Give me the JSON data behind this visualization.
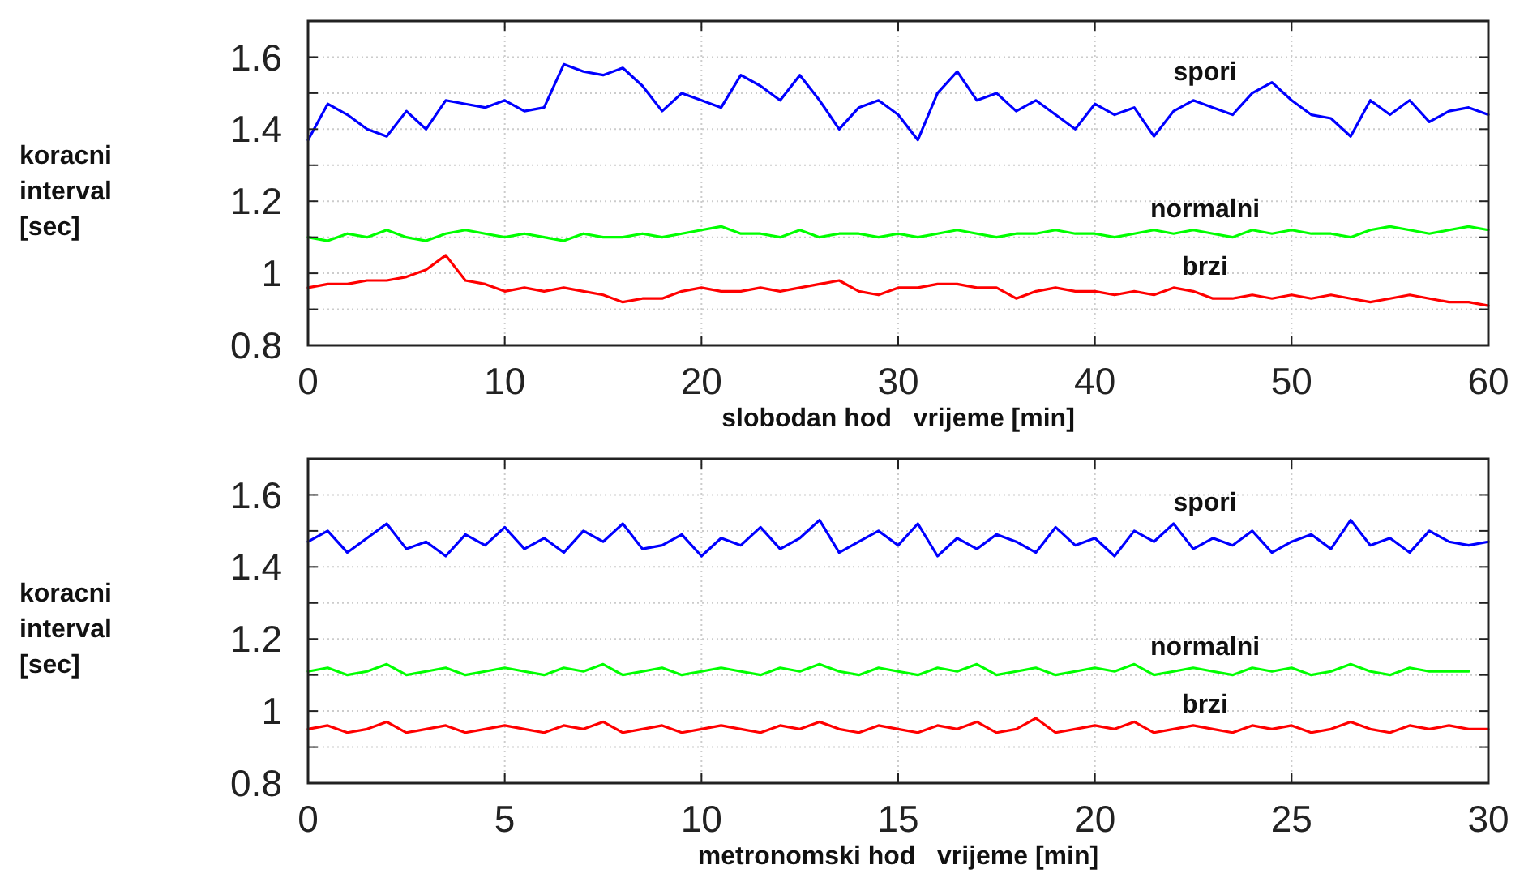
{
  "chart_data": [
    {
      "type": "line",
      "xlabel": "slobodan hod   vrijeme [min]",
      "ylabel": "koracni interval [sec]",
      "xlim": [
        0,
        60
      ],
      "xticks": [
        0,
        10,
        20,
        30,
        40,
        50,
        60
      ],
      "ylim": [
        0.8,
        1.7
      ],
      "yticks": [
        0.8,
        {
          "value": 0.9,
          "label": null
        },
        1,
        {
          "value": 1.1,
          "label": null
        },
        1.2,
        {
          "value": 1.3,
          "label": null
        },
        1.4,
        {
          "value": 1.5,
          "label": null
        },
        1.6
      ],
      "grid": true,
      "x": [
        0,
        1,
        2,
        3,
        4,
        5,
        6,
        7,
        8,
        9,
        10,
        11,
        12,
        13,
        14,
        15,
        16,
        17,
        18,
        19,
        20,
        21,
        22,
        23,
        24,
        25,
        26,
        27,
        28,
        29,
        30,
        31,
        32,
        33,
        34,
        35,
        36,
        37,
        38,
        39,
        40,
        41,
        42,
        43,
        44,
        45,
        46,
        47,
        48,
        49,
        50,
        51,
        52,
        53,
        54,
        55,
        56,
        57,
        58,
        59,
        60
      ],
      "series": [
        {
          "name": "spori",
          "color": "#0000ff",
          "values": [
            1.37,
            1.47,
            1.44,
            1.4,
            1.38,
            1.45,
            1.4,
            1.48,
            1.47,
            1.46,
            1.48,
            1.45,
            1.46,
            1.58,
            1.56,
            1.55,
            1.57,
            1.52,
            1.45,
            1.5,
            1.48,
            1.46,
            1.55,
            1.52,
            1.48,
            1.55,
            1.48,
            1.4,
            1.46,
            1.48,
            1.44,
            1.37,
            1.5,
            1.56,
            1.48,
            1.5,
            1.45,
            1.48,
            1.44,
            1.4,
            1.47,
            1.44,
            1.46,
            1.38,
            1.45,
            1.48,
            1.46,
            1.44,
            1.5,
            1.53,
            1.48,
            1.44,
            1.43,
            1.38,
            1.48,
            1.44,
            1.48,
            1.42,
            1.45,
            1.46,
            1.44
          ]
        },
        {
          "name": "normalni",
          "color": "#00ff00",
          "values": [
            1.1,
            1.09,
            1.11,
            1.1,
            1.12,
            1.1,
            1.09,
            1.11,
            1.12,
            1.11,
            1.1,
            1.11,
            1.1,
            1.09,
            1.11,
            1.1,
            1.1,
            1.11,
            1.1,
            1.11,
            1.12,
            1.13,
            1.11,
            1.11,
            1.1,
            1.12,
            1.1,
            1.11,
            1.11,
            1.1,
            1.11,
            1.1,
            1.11,
            1.12,
            1.11,
            1.1,
            1.11,
            1.11,
            1.12,
            1.11,
            1.11,
            1.1,
            1.11,
            1.12,
            1.11,
            1.12,
            1.11,
            1.1,
            1.12,
            1.11,
            1.12,
            1.11,
            1.11,
            1.1,
            1.12,
            1.13,
            1.12,
            1.11,
            1.12,
            1.13,
            1.12
          ]
        },
        {
          "name": "brzi",
          "color": "#ff0000",
          "values": [
            0.96,
            0.97,
            0.97,
            0.98,
            0.98,
            0.99,
            1.01,
            1.05,
            0.98,
            0.97,
            0.95,
            0.96,
            0.95,
            0.96,
            0.95,
            0.94,
            0.92,
            0.93,
            0.93,
            0.95,
            0.96,
            0.95,
            0.95,
            0.96,
            0.95,
            0.96,
            0.97,
            0.98,
            0.95,
            0.94,
            0.96,
            0.96,
            0.97,
            0.97,
            0.96,
            0.96,
            0.93,
            0.95,
            0.96,
            0.95,
            0.95,
            0.94,
            0.95,
            0.94,
            0.96,
            0.95,
            0.93,
            0.93,
            0.94,
            0.93,
            0.94,
            0.93,
            0.94,
            0.93,
            0.92,
            0.93,
            0.94,
            0.93,
            0.92,
            0.92,
            0.91
          ]
        }
      ]
    },
    {
      "type": "line",
      "xlabel": "metronomski hod   vrijeme [min]",
      "ylabel": "koracni interval [sec]",
      "xlim": [
        0,
        30
      ],
      "xticks": [
        0,
        5,
        10,
        15,
        20,
        25,
        30
      ],
      "ylim": [
        0.8,
        1.7
      ],
      "yticks": [
        0.8,
        {
          "value": 0.9,
          "label": null
        },
        1,
        {
          "value": 1.1,
          "label": null
        },
        1.2,
        {
          "value": 1.3,
          "label": null
        },
        1.4,
        {
          "value": 1.5,
          "label": null
        },
        1.6
      ],
      "grid": true,
      "x": [
        0,
        0.5,
        1,
        1.5,
        2,
        2.5,
        3,
        3.5,
        4,
        4.5,
        5,
        5.5,
        6,
        6.5,
        7,
        7.5,
        8,
        8.5,
        9,
        9.5,
        10,
        10.5,
        11,
        11.5,
        12,
        12.5,
        13,
        13.5,
        14,
        14.5,
        15,
        15.5,
        16,
        16.5,
        17,
        17.5,
        18,
        18.5,
        19,
        19.5,
        20,
        20.5,
        21,
        21.5,
        22,
        22.5,
        23,
        23.5,
        24,
        24.5,
        25,
        25.5,
        26,
        26.5,
        27,
        27.5,
        28,
        28.5,
        29,
        29.5,
        30
      ],
      "series": [
        {
          "name": "spori",
          "color": "#0000ff",
          "values": [
            1.47,
            1.5,
            1.44,
            1.48,
            1.52,
            1.45,
            1.47,
            1.43,
            1.49,
            1.46,
            1.51,
            1.45,
            1.48,
            1.44,
            1.5,
            1.47,
            1.52,
            1.45,
            1.46,
            1.49,
            1.43,
            1.48,
            1.46,
            1.51,
            1.45,
            1.48,
            1.53,
            1.44,
            1.47,
            1.5,
            1.46,
            1.52,
            1.43,
            1.48,
            1.45,
            1.49,
            1.47,
            1.44,
            1.51,
            1.46,
            1.48,
            1.43,
            1.5,
            1.47,
            1.52,
            1.45,
            1.48,
            1.46,
            1.5,
            1.44,
            1.47,
            1.49,
            1.45,
            1.53,
            1.46,
            1.48,
            1.44,
            1.5,
            1.47,
            1.46,
            1.47
          ]
        },
        {
          "name": "normalni",
          "color": "#00ff00",
          "values": [
            1.11,
            1.12,
            1.1,
            1.11,
            1.13,
            1.1,
            1.11,
            1.12,
            1.1,
            1.11,
            1.12,
            1.11,
            1.1,
            1.12,
            1.11,
            1.13,
            1.1,
            1.11,
            1.12,
            1.1,
            1.11,
            1.12,
            1.11,
            1.1,
            1.12,
            1.11,
            1.13,
            1.11,
            1.1,
            1.12,
            1.11,
            1.1,
            1.12,
            1.11,
            1.13,
            1.1,
            1.11,
            1.12,
            1.1,
            1.11,
            1.12,
            1.11,
            1.13,
            1.1,
            1.11,
            1.12,
            1.11,
            1.1,
            1.12,
            1.11,
            1.12,
            1.1,
            1.11,
            1.13,
            1.11,
            1.1,
            1.12,
            1.11,
            1.11,
            1.11,
            null
          ]
        },
        {
          "name": "brzi",
          "color": "#ff0000",
          "values": [
            0.95,
            0.96,
            0.94,
            0.95,
            0.97,
            0.94,
            0.95,
            0.96,
            0.94,
            0.95,
            0.96,
            0.95,
            0.94,
            0.96,
            0.95,
            0.97,
            0.94,
            0.95,
            0.96,
            0.94,
            0.95,
            0.96,
            0.95,
            0.94,
            0.96,
            0.95,
            0.97,
            0.95,
            0.94,
            0.96,
            0.95,
            0.94,
            0.96,
            0.95,
            0.97,
            0.94,
            0.95,
            0.98,
            0.94,
            0.95,
            0.96,
            0.95,
            0.97,
            0.94,
            0.95,
            0.96,
            0.95,
            0.94,
            0.96,
            0.95,
            0.96,
            0.94,
            0.95,
            0.97,
            0.95,
            0.94,
            0.96,
            0.95,
            0.96,
            0.95,
            0.95
          ]
        }
      ]
    }
  ]
}
